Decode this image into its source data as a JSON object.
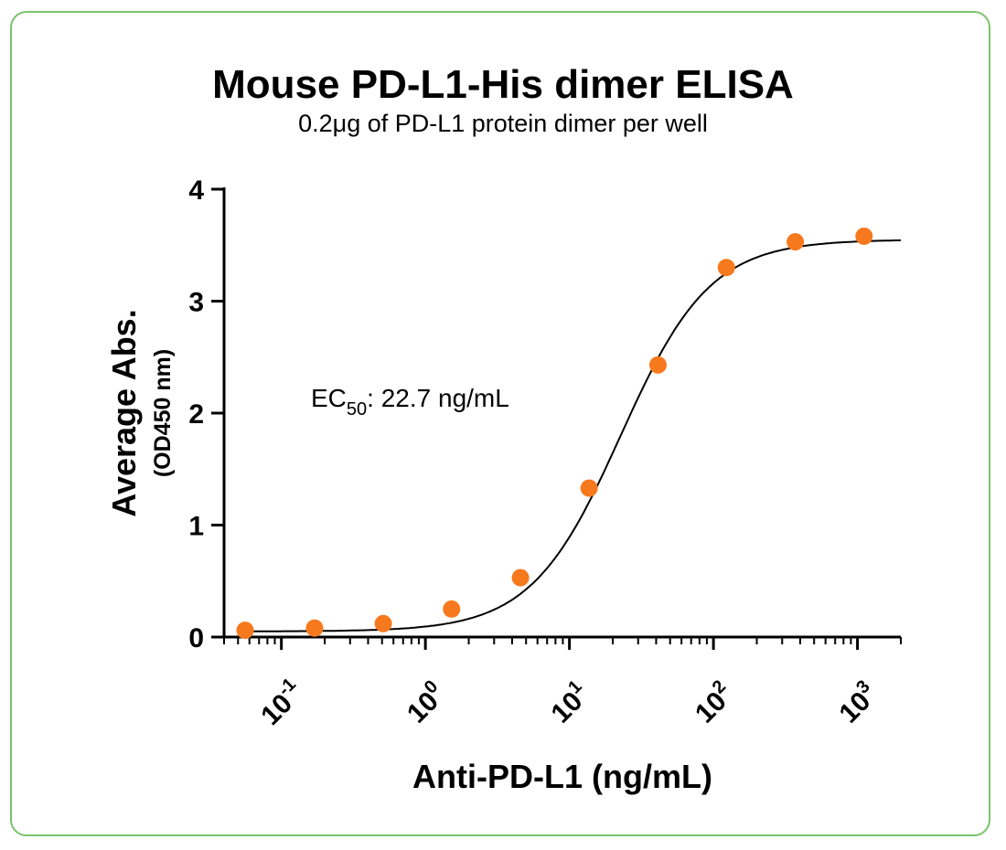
{
  "chart_data": {
    "type": "scatter",
    "title": "Mouse PD-L1-His dimer ELISA",
    "subtitle": "0.2μg of PD-L1 protein dimer per well",
    "xlabel": "Anti-PD-L1 (ng/mL)",
    "ylabel": "Average Abs.",
    "ylabel_sub": "(OD450 nm)",
    "x_scale": "log",
    "xlim": [
      0.04,
      2000
    ],
    "ylim": [
      0,
      4
    ],
    "y_ticks": [
      "0",
      "1",
      "2",
      "3",
      "4"
    ],
    "x_ticks": [
      {
        "base": "10",
        "exp": "-1",
        "value": 0.1
      },
      {
        "base": "10",
        "exp": "0",
        "value": 1
      },
      {
        "base": "10",
        "exp": "1",
        "value": 10
      },
      {
        "base": "10",
        "exp": "2",
        "value": 100
      },
      {
        "base": "10",
        "exp": "3",
        "value": 1000
      }
    ],
    "series": [
      {
        "marker_color": "#f7791d",
        "x": [
          0.056,
          0.17,
          0.51,
          1.52,
          4.57,
          13.7,
          41.2,
          123,
          370,
          1111
        ],
        "y": [
          0.06,
          0.08,
          0.12,
          0.25,
          0.53,
          1.33,
          2.43,
          3.3,
          3.53,
          3.58
        ]
      }
    ],
    "fit": {
      "bottom": 0.05,
      "top": 3.55,
      "ec50": 22.7,
      "hill": 1.4,
      "color": "#000000"
    },
    "annotation": {
      "prefix": "EC",
      "subscript": "50",
      "suffix": ": 22.7 ng/mL"
    }
  },
  "frame_color": "#7ac36a"
}
